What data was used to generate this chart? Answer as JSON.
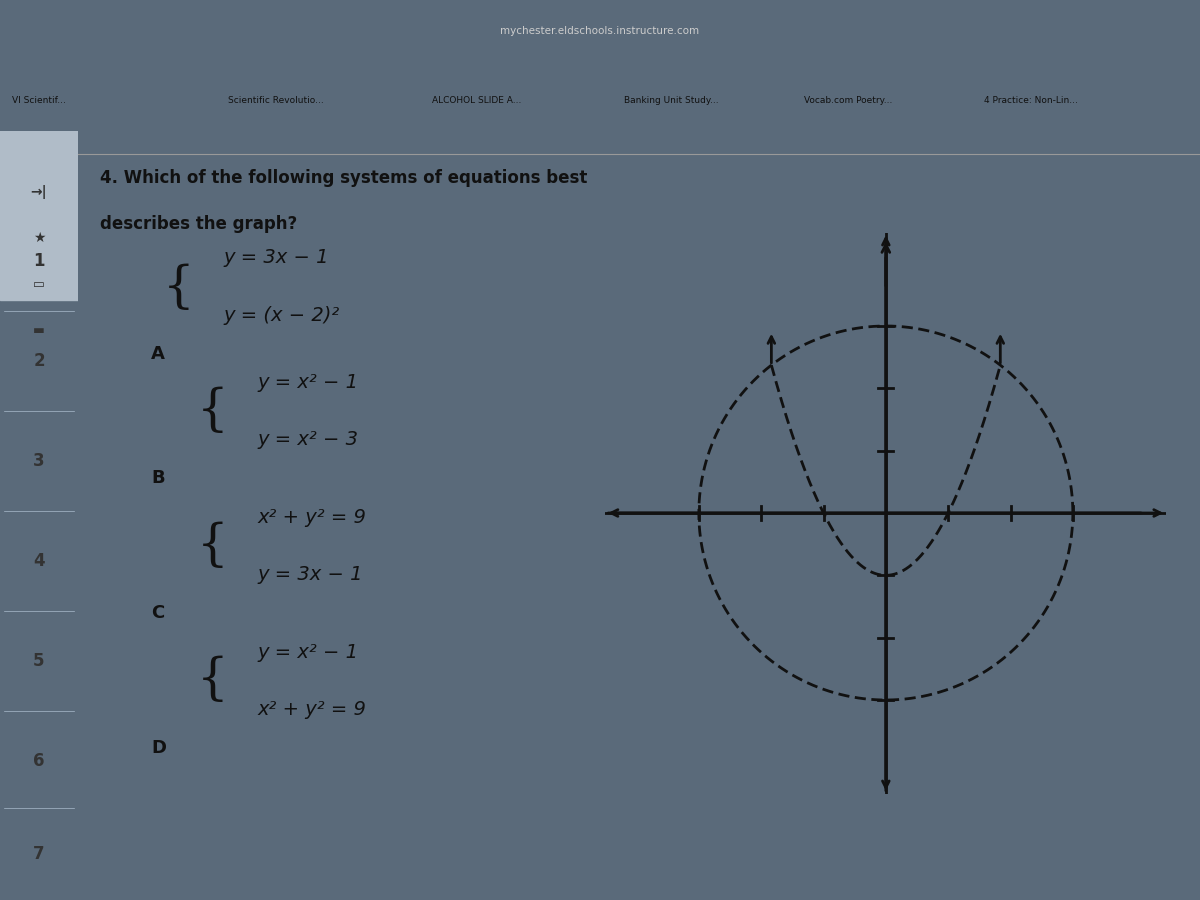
{
  "bg_outer": "#5a6a7a",
  "bg_browser_top": "#3a4a5a",
  "bg_browser_tabs": "#8a9aaa",
  "bg_main": "#c0ccd8",
  "bg_sidebar": "#d0dae4",
  "bg_content": "#c8d4dc",
  "text_color": "#111111",
  "text_color_dark": "#222222",
  "url": "mychester.eldschools.instructure.com",
  "tab_labels": [
    "VI Scientif...",
    "Scientific Revolutio...",
    "ALCOHOL SLIDE A...",
    "Banking Unit Study...",
    "Vocab.com Poetry...",
    "4 Practice: Non-Lin..."
  ],
  "sidebar_icons": [
    "→|",
    "★",
    "□",
    "═"
  ],
  "sidebar_numbers": [
    "1",
    "2",
    "3",
    "4",
    "5",
    "6",
    "7"
  ],
  "question_line1": "4. Which of the following systems of equations best",
  "question_line2": "describes the graph?",
  "optA_label": "A",
  "optA_eq1": "y = 3x − 1",
  "optA_eq2": "y = (x − 2)²",
  "optB_label": "B",
  "optB_eq1": "y = x² − 1",
  "optB_eq2": "y = x² − 3",
  "optC_label": "C",
  "optC_eq1": "x² + y² = 9",
  "optC_eq2": "y = 3x − 1",
  "optD_label": "D",
  "optD_eq1": "y = x² − 1",
  "optD_eq2": "x² + y² = 9",
  "graph_circle_r": 3,
  "graph_xlim": [
    -4.5,
    4.5
  ],
  "graph_ylim": [
    -4.5,
    4.5
  ],
  "graph_color": "#111111",
  "graph_lw": 2.0,
  "tick_positions": [
    -3,
    -2,
    -1,
    1,
    2,
    3
  ],
  "tick_size": 0.12
}
